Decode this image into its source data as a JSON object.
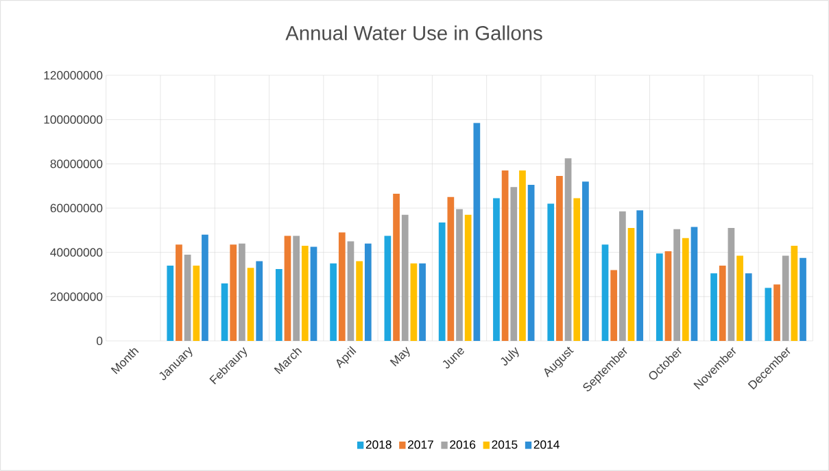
{
  "chart_data": {
    "type": "bar",
    "title": "Annual Water Use in Gallons",
    "categories": [
      "Month",
      "January",
      "Febraury",
      "March",
      "April",
      "May",
      "June",
      "July",
      "August",
      "September",
      "October",
      "November",
      "December"
    ],
    "series": [
      {
        "name": "2018",
        "color": "#1ea7e0",
        "values": [
          null,
          34000000,
          26000000,
          32500000,
          35000000,
          47500000,
          53500000,
          64500000,
          62000000,
          43500000,
          39500000,
          30500000,
          24000000
        ]
      },
      {
        "name": "2017",
        "color": "#ed7d31",
        "values": [
          null,
          43500000,
          43500000,
          47500000,
          49000000,
          66500000,
          65000000,
          77000000,
          74500000,
          32000000,
          40500000,
          34000000,
          25500000
        ]
      },
      {
        "name": "2016",
        "color": "#a5a5a5",
        "values": [
          null,
          39000000,
          44000000,
          47500000,
          45000000,
          57000000,
          59500000,
          69500000,
          82500000,
          58500000,
          50500000,
          51000000,
          38500000
        ]
      },
      {
        "name": "2015",
        "color": "#ffc000",
        "values": [
          null,
          34000000,
          33000000,
          43000000,
          36000000,
          35000000,
          57000000,
          77000000,
          64500000,
          51000000,
          46500000,
          38500000,
          43000000
        ]
      },
      {
        "name": "2014",
        "color": "#2e8fd6",
        "values": [
          null,
          48000000,
          36000000,
          42500000,
          44000000,
          35000000,
          98500000,
          70500000,
          72000000,
          59000000,
          51500000,
          30500000,
          37500000
        ]
      }
    ],
    "ylim": [
      0,
      120000000
    ],
    "yticks": [
      0,
      20000000,
      40000000,
      60000000,
      80000000,
      100000000,
      120000000
    ],
    "grid": true,
    "legend": "bottom"
  }
}
